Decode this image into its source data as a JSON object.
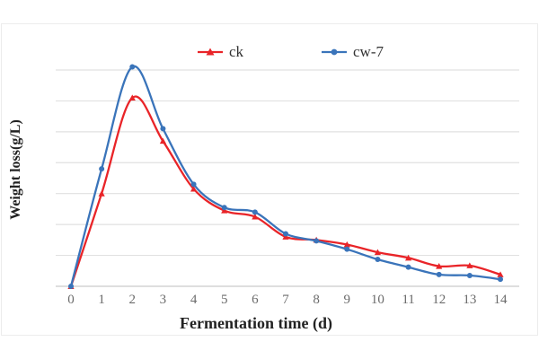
{
  "chart_data": {
    "type": "line",
    "title": "",
    "xlabel": "Fermentation time (d)",
    "ylabel": "Weight loss(g/L)",
    "x": [
      0,
      1,
      2,
      3,
      4,
      5,
      6,
      7,
      8,
      9,
      10,
      11,
      12,
      13,
      14
    ],
    "series": [
      {
        "name": "ck",
        "color": "#e92428",
        "marker": "triangle",
        "values": [
          0,
          3.0,
          6.1,
          4.7,
          3.15,
          2.45,
          2.25,
          1.6,
          1.5,
          1.35,
          1.1,
          0.92,
          0.65,
          0.67,
          0.38
        ]
      },
      {
        "name": "cw-7",
        "color": "#3a74ba",
        "marker": "circle",
        "values": [
          0,
          3.8,
          7.1,
          5.1,
          3.3,
          2.55,
          2.4,
          1.7,
          1.47,
          1.2,
          0.87,
          0.62,
          0.38,
          0.35,
          0.23
        ]
      }
    ],
    "ylim": [
      0,
      7.5
    ],
    "y_gridline_interval": 1,
    "y_tick_labels_visible": false,
    "grid": true,
    "legend_position": "top",
    "line_style": "smooth",
    "colors": {
      "gridline": "#e1e1e1",
      "axis_line": "#c9c9c9",
      "tick_label": "#6b6b6b",
      "title_text": "#222222",
      "frame_border": "#ececec"
    }
  }
}
